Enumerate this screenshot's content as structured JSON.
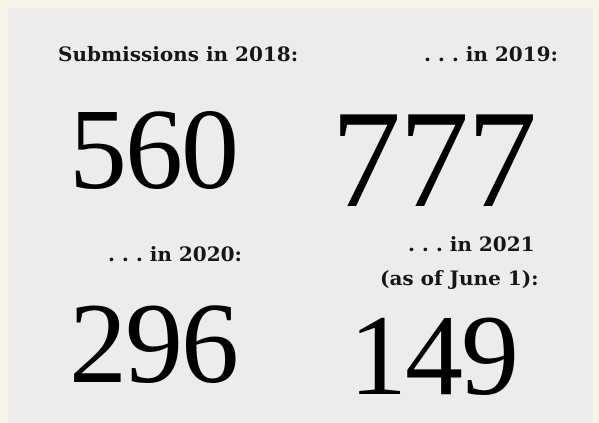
{
  "stats": [
    {
      "label": "Submissions in 2018:",
      "value": "560"
    },
    {
      "label": ". . . in 2019:",
      "value": "777"
    },
    {
      "label": ". . . in 2020:",
      "value": "296"
    },
    {
      "label_line1": ". . . in 2021",
      "label_line2": "(as of June 1):",
      "value": "149"
    }
  ],
  "colors": {
    "page_background": "#f7f5ea",
    "panel_background": "#ececec",
    "text": "#000000"
  }
}
